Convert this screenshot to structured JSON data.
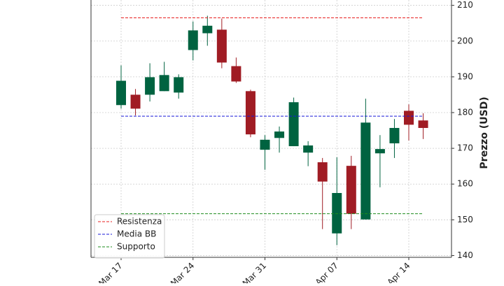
{
  "chart_data": {
    "type": "candlestick",
    "y_label": "Prezzo (USD)",
    "categories": [
      "Mar 17",
      null,
      null,
      null,
      null,
      "Mar 24",
      null,
      null,
      null,
      null,
      "Mar 31",
      null,
      null,
      null,
      null,
      "Apr 07",
      null,
      null,
      null,
      null,
      "Apr 14",
      null
    ],
    "open": [
      182.1,
      185.0,
      185.0,
      186.0,
      185.6,
      197.5,
      202.2,
      203.2,
      193.0,
      186.0,
      169.6,
      172.9,
      170.6,
      168.8,
      166.1,
      146.2,
      165.1,
      150.1,
      168.6,
      171.4,
      180.5,
      177.8
    ],
    "high": [
      193.2,
      186.6,
      193.8,
      194.2,
      190.7,
      205.5,
      207.1,
      206.3,
      195.4,
      186.4,
      173.7,
      176.1,
      184.2,
      172.0,
      167.3,
      167.5,
      167.9,
      183.9,
      173.7,
      178.2,
      182.3,
      179.8
    ],
    "low": [
      181.1,
      179.2,
      183.1,
      186.0,
      183.9,
      194.6,
      198.7,
      192.4,
      188.3,
      173.1,
      164.0,
      168.8,
      170.6,
      165.0,
      147.4,
      142.9,
      147.4,
      150.1,
      159.1,
      167.3,
      172.2,
      172.6
    ],
    "close": [
      188.9,
      181.1,
      189.9,
      190.5,
      189.9,
      203.0,
      204.3,
      194.0,
      188.7,
      173.9,
      172.4,
      174.7,
      182.9,
      170.8,
      160.7,
      157.5,
      151.7,
      177.2,
      169.8,
      175.7,
      176.6,
      175.7
    ],
    "up_color": "#006340",
    "down_color": "#a01c24",
    "hlines": [
      {
        "name": "Resistenza",
        "value": 206.5,
        "color": "#e82020"
      },
      {
        "name": "Media BB",
        "value": 179.0,
        "color": "#1a1ad8"
      },
      {
        "name": "Supporto",
        "value": 151.7,
        "color": "#1e8c1e"
      }
    ],
    "ylim": [
      139.5,
      211.5
    ],
    "yticks": [
      140,
      150,
      160,
      170,
      180,
      190,
      200,
      210
    ],
    "grid": true,
    "legend": "lower left"
  }
}
